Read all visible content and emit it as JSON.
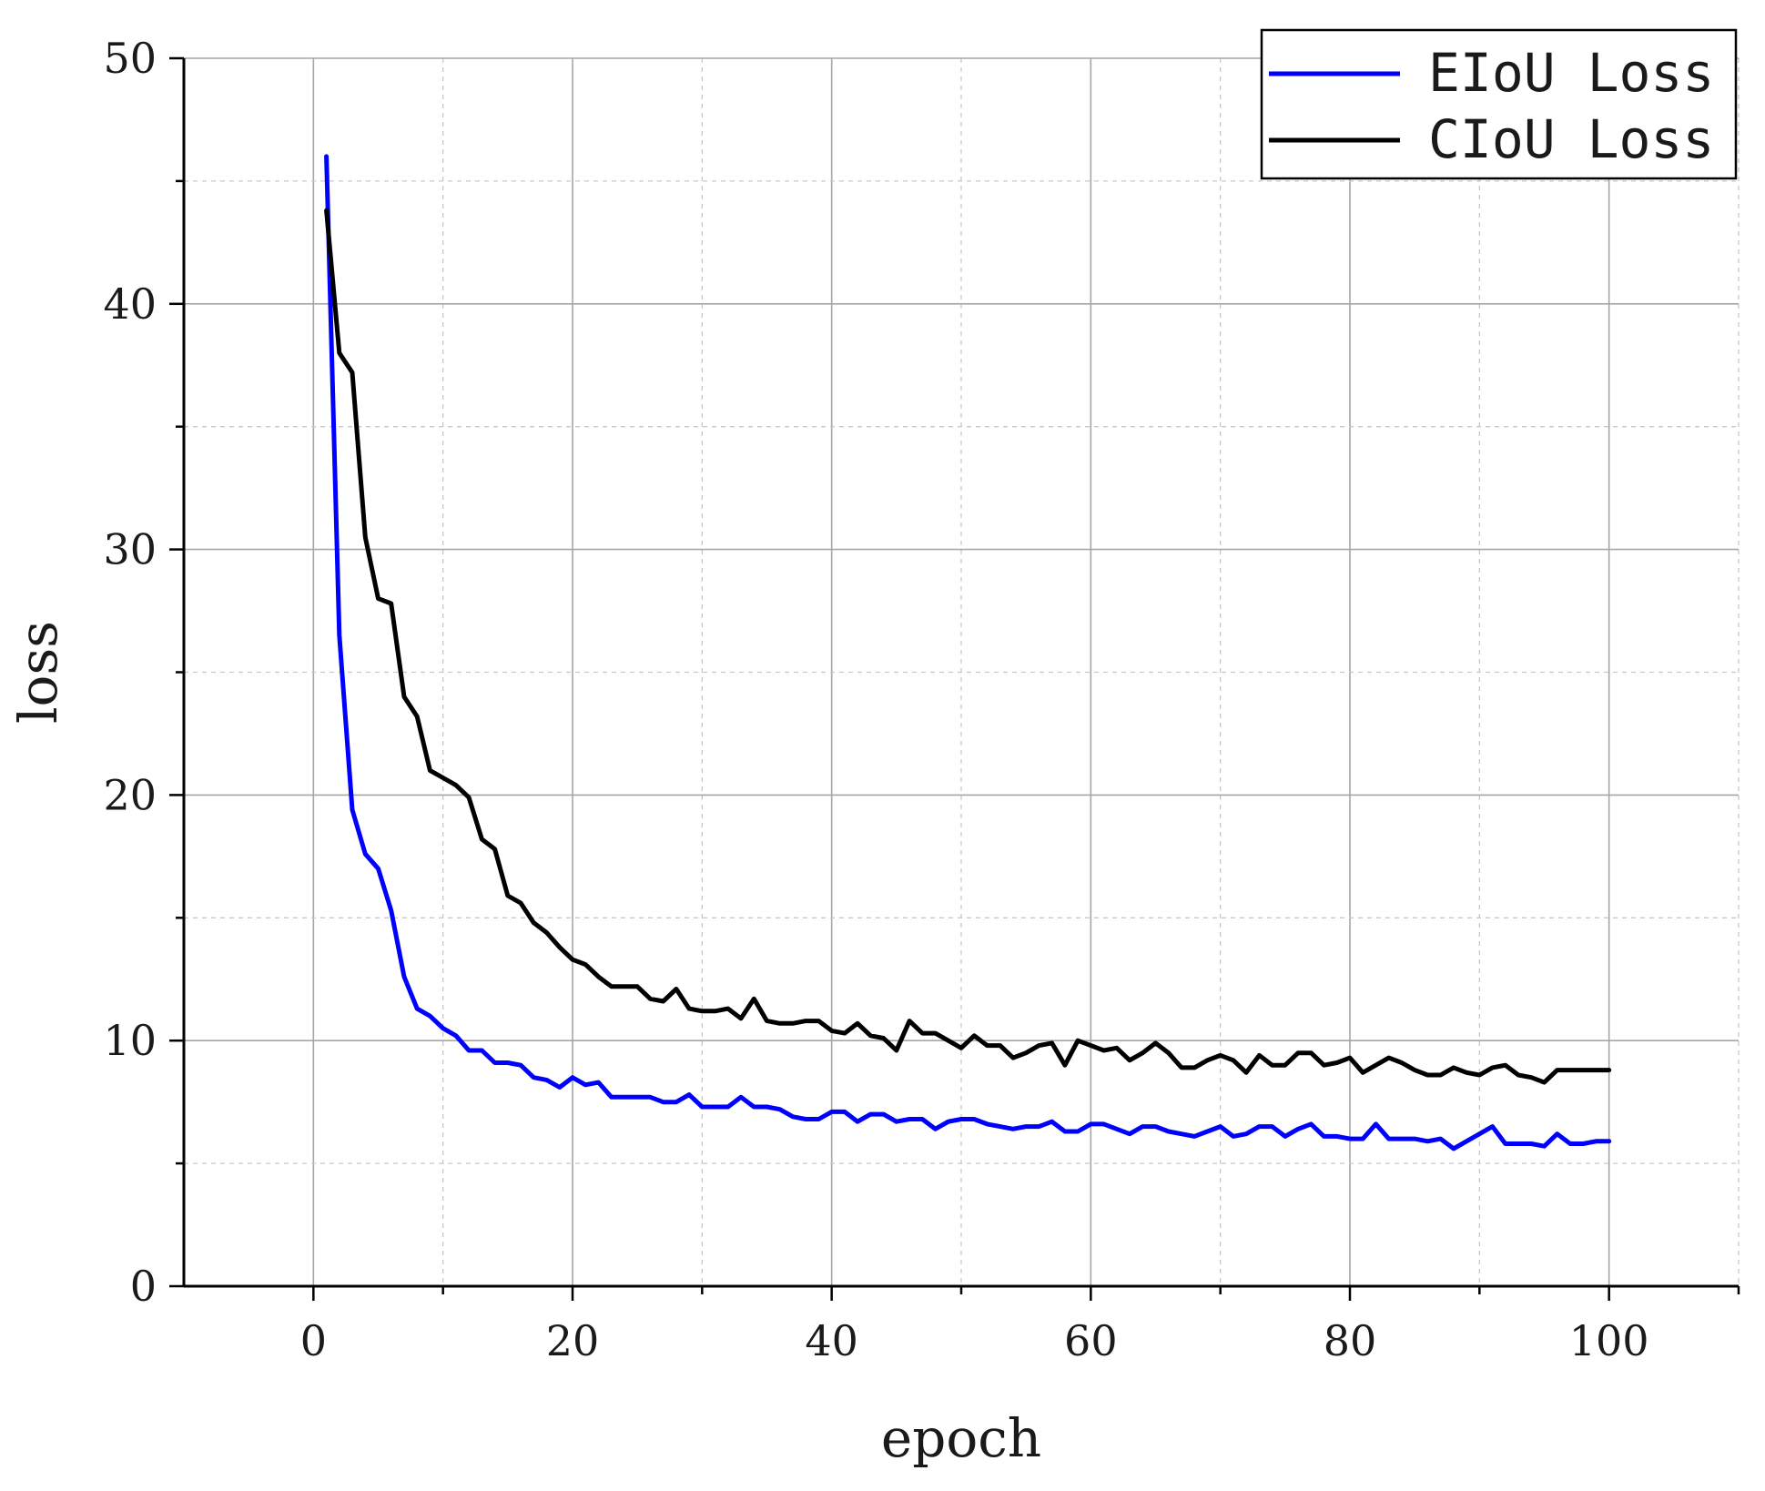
{
  "chart_data": {
    "type": "line",
    "xlabel": "epoch",
    "ylabel": "loss",
    "xlim": [
      -10,
      110
    ],
    "ylim": [
      0,
      50
    ],
    "x_ticks": [
      0,
      20,
      40,
      60,
      80,
      100
    ],
    "y_ticks": [
      0,
      10,
      20,
      30,
      40,
      50
    ],
    "x_minor_ticks": [
      10,
      30,
      50,
      70,
      90,
      110
    ],
    "y_minor_ticks": [
      5,
      15,
      25,
      35,
      45
    ],
    "grid": true,
    "legend_position": "top-right",
    "series": [
      {
        "name": "EIoU Loss",
        "color": "#0000ff",
        "x": [
          1,
          2,
          3,
          4,
          5,
          6,
          7,
          8,
          9,
          10,
          11,
          12,
          13,
          14,
          15,
          16,
          17,
          18,
          19,
          20,
          21,
          22,
          23,
          24,
          25,
          26,
          27,
          28,
          29,
          30,
          31,
          32,
          33,
          34,
          35,
          36,
          37,
          38,
          39,
          40,
          41,
          42,
          43,
          44,
          45,
          46,
          47,
          48,
          49,
          50,
          51,
          52,
          53,
          54,
          55,
          56,
          57,
          58,
          59,
          60,
          61,
          62,
          63,
          64,
          65,
          66,
          67,
          68,
          69,
          70,
          71,
          72,
          73,
          74,
          75,
          76,
          77,
          78,
          79,
          80,
          81,
          82,
          83,
          84,
          85,
          86,
          87,
          88,
          89,
          90,
          91,
          92,
          93,
          94,
          95,
          96,
          97,
          98,
          99,
          100
        ],
        "values": [
          46.0,
          26.5,
          19.4,
          17.6,
          17.0,
          15.3,
          12.6,
          11.3,
          11.0,
          10.5,
          10.2,
          9.6,
          9.6,
          9.1,
          9.1,
          9.0,
          8.5,
          8.4,
          8.1,
          8.5,
          8.2,
          8.3,
          7.7,
          7.7,
          7.7,
          7.7,
          7.5,
          7.5,
          7.8,
          7.3,
          7.3,
          7.3,
          7.7,
          7.3,
          7.3,
          7.2,
          6.9,
          6.8,
          6.8,
          7.1,
          7.1,
          6.7,
          7.0,
          7.0,
          6.7,
          6.8,
          6.8,
          6.4,
          6.7,
          6.8,
          6.8,
          6.6,
          6.5,
          6.4,
          6.5,
          6.5,
          6.7,
          6.3,
          6.3,
          6.6,
          6.6,
          6.4,
          6.2,
          6.5,
          6.5,
          6.3,
          6.2,
          6.1,
          6.3,
          6.5,
          6.1,
          6.2,
          6.5,
          6.5,
          6.1,
          6.4,
          6.6,
          6.1,
          6.1,
          6.0,
          6.0,
          6.6,
          6.0,
          6.0,
          6.0,
          5.9,
          6.0,
          5.6,
          5.9,
          6.2,
          6.5,
          5.8,
          5.8,
          5.8,
          5.7,
          6.2,
          5.8,
          5.8,
          5.9,
          5.9
        ]
      },
      {
        "name": "CIoU Loss",
        "color": "#000000",
        "x": [
          1,
          2,
          3,
          4,
          5,
          6,
          7,
          8,
          9,
          10,
          11,
          12,
          13,
          14,
          15,
          16,
          17,
          18,
          19,
          20,
          21,
          22,
          23,
          24,
          25,
          26,
          27,
          28,
          29,
          30,
          31,
          32,
          33,
          34,
          35,
          36,
          37,
          38,
          39,
          40,
          41,
          42,
          43,
          44,
          45,
          46,
          47,
          48,
          49,
          50,
          51,
          52,
          53,
          54,
          55,
          56,
          57,
          58,
          59,
          60,
          61,
          62,
          63,
          64,
          65,
          66,
          67,
          68,
          69,
          70,
          71,
          72,
          73,
          74,
          75,
          76,
          77,
          78,
          79,
          80,
          81,
          82,
          83,
          84,
          85,
          86,
          87,
          88,
          89,
          90,
          91,
          92,
          93,
          94,
          95,
          96,
          97,
          98,
          99,
          100
        ],
        "values": [
          43.8,
          38.0,
          37.2,
          30.5,
          28.0,
          27.8,
          24.0,
          23.2,
          21.0,
          20.7,
          20.4,
          19.9,
          18.2,
          17.8,
          15.9,
          15.6,
          14.8,
          14.4,
          13.8,
          13.3,
          13.1,
          12.6,
          12.2,
          12.2,
          12.2,
          11.7,
          11.6,
          12.1,
          11.3,
          11.2,
          11.2,
          11.3,
          10.9,
          11.7,
          10.8,
          10.7,
          10.7,
          10.8,
          10.8,
          10.4,
          10.3,
          10.7,
          10.2,
          10.1,
          9.6,
          10.8,
          10.3,
          10.3,
          10.0,
          9.7,
          10.2,
          9.8,
          9.8,
          9.3,
          9.5,
          9.8,
          9.9,
          9.0,
          10.0,
          9.8,
          9.6,
          9.7,
          9.2,
          9.5,
          9.9,
          9.5,
          8.9,
          8.9,
          9.2,
          9.4,
          9.2,
          8.7,
          9.4,
          9.0,
          9.0,
          9.5,
          9.5,
          9.0,
          9.1,
          9.3,
          8.7,
          9.0,
          9.3,
          9.1,
          8.8,
          8.6,
          8.6,
          8.9,
          8.7,
          8.6,
          8.9,
          9.0,
          8.6,
          8.5,
          8.3,
          8.8,
          8.8,
          8.8,
          8.8,
          8.8
        ]
      }
    ]
  }
}
